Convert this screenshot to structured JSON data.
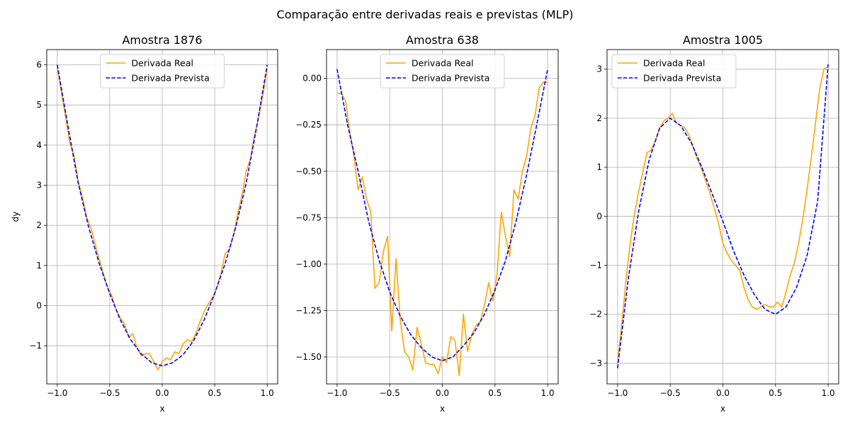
{
  "suptitle": "Comparação entre derivadas reais e previstas (MLP)",
  "colors": {
    "real": "#ffa500",
    "pred": "#0000ff",
    "grid": "#b0b0b0"
  },
  "chart_data": [
    {
      "type": "line",
      "title": "Amostra 1876",
      "xlabel": "x",
      "ylabel": "dy",
      "xlim": [
        -1.1,
        1.1
      ],
      "ylim": [
        -1.95,
        6.38
      ],
      "xticks": [
        -1.0,
        -0.5,
        0.0,
        0.5,
        1.0
      ],
      "xtick_labels": [
        "−1.0",
        "−0.5",
        "0.0",
        "0.5",
        "1.0"
      ],
      "yticks": [
        -1,
        0,
        1,
        2,
        3,
        4,
        5,
        6
      ],
      "ytick_labels": [
        "−1",
        "0",
        "1",
        "2",
        "3",
        "4",
        "5",
        "6"
      ],
      "grid": true,
      "legend_position": "top-center",
      "series": [
        {
          "name": "Derivada Real",
          "style": "solid",
          "x": [
            -1.0,
            -0.96,
            -0.92,
            -0.88,
            -0.84,
            -0.8,
            -0.76,
            -0.72,
            -0.68,
            -0.64,
            -0.6,
            -0.56,
            -0.52,
            -0.48,
            -0.44,
            -0.4,
            -0.36,
            -0.32,
            -0.28,
            -0.24,
            -0.2,
            -0.16,
            -0.12,
            -0.08,
            -0.04,
            0.0,
            0.04,
            0.08,
            0.12,
            0.16,
            0.2,
            0.24,
            0.28,
            0.32,
            0.36,
            0.4,
            0.44,
            0.48,
            0.52,
            0.56,
            0.6,
            0.64,
            0.68,
            0.72,
            0.76,
            0.8,
            0.84,
            0.88,
            0.92,
            0.96,
            1.0
          ],
          "y": [
            5.95,
            5.3,
            4.7,
            4.05,
            3.75,
            3.1,
            2.7,
            2.2,
            1.95,
            1.55,
            1.15,
            0.8,
            0.45,
            0.25,
            -0.1,
            -0.3,
            -0.45,
            -0.8,
            -0.7,
            -1.05,
            -1.25,
            -1.2,
            -1.2,
            -1.4,
            -1.6,
            -1.4,
            -1.3,
            -1.35,
            -1.15,
            -1.2,
            -0.95,
            -0.85,
            -0.9,
            -0.7,
            -0.4,
            -0.15,
            0.05,
            0.2,
            0.45,
            0.8,
            1.3,
            1.4,
            1.75,
            2.3,
            2.75,
            3.35,
            3.65,
            4.25,
            4.7,
            5.25,
            5.9
          ]
        },
        {
          "name": "Derivada Prevista",
          "style": "dashed",
          "x": [
            -1.0,
            -0.9,
            -0.8,
            -0.7,
            -0.6,
            -0.5,
            -0.4,
            -0.3,
            -0.2,
            -0.1,
            0.0,
            0.1,
            0.2,
            0.3,
            0.4,
            0.5,
            0.6,
            0.7,
            0.8,
            0.9,
            1.0
          ],
          "y": [
            6.0,
            4.5,
            3.05,
            1.95,
            1.05,
            0.3,
            -0.35,
            -0.85,
            -1.2,
            -1.42,
            -1.5,
            -1.42,
            -1.22,
            -0.87,
            -0.35,
            0.3,
            1.05,
            1.95,
            3.05,
            4.45,
            6.0
          ]
        }
      ]
    },
    {
      "type": "line",
      "title": "Amostra 638",
      "xlabel": "x",
      "ylabel": "",
      "xlim": [
        -1.1,
        1.1
      ],
      "ylim": [
        -1.645,
        0.155
      ],
      "xticks": [
        -1.0,
        -0.5,
        0.0,
        0.5,
        1.0
      ],
      "xtick_labels": [
        "−1.0",
        "−0.5",
        "0.0",
        "0.5",
        "1.0"
      ],
      "yticks": [
        -1.5,
        -1.25,
        -1.0,
        -0.75,
        -0.5,
        -0.25,
        0.0
      ],
      "ytick_labels": [
        "−1.50",
        "−1.25",
        "−1.00",
        "−0.75",
        "−0.50",
        "−0.25",
        "0.00"
      ],
      "grid": true,
      "legend_position": "top-center",
      "series": [
        {
          "name": "Derivada Real",
          "style": "solid",
          "x": [
            -1.0,
            -0.96,
            -0.92,
            -0.88,
            -0.84,
            -0.8,
            -0.76,
            -0.72,
            -0.68,
            -0.64,
            -0.6,
            -0.56,
            -0.52,
            -0.48,
            -0.44,
            -0.4,
            -0.36,
            -0.32,
            -0.28,
            -0.24,
            -0.2,
            -0.16,
            -0.12,
            -0.08,
            -0.04,
            0.0,
            0.04,
            0.08,
            0.12,
            0.16,
            0.2,
            0.24,
            0.28,
            0.32,
            0.36,
            0.4,
            0.44,
            0.48,
            0.52,
            0.56,
            0.6,
            0.64,
            0.68,
            0.72,
            0.76,
            0.8,
            0.84,
            0.88,
            0.92,
            0.96,
            1.0
          ],
          "y": [
            -0.08,
            -0.08,
            -0.12,
            -0.28,
            -0.42,
            -0.6,
            -0.53,
            -0.65,
            -0.72,
            -1.13,
            -1.1,
            -0.93,
            -0.85,
            -1.36,
            -0.97,
            -1.3,
            -1.47,
            -1.5,
            -1.57,
            -1.34,
            -1.43,
            -1.53,
            -1.54,
            -1.54,
            -1.59,
            -1.5,
            -1.53,
            -1.39,
            -1.41,
            -1.6,
            -1.27,
            -1.47,
            -1.38,
            -1.33,
            -1.31,
            -1.22,
            -1.1,
            -1.2,
            -1.05,
            -0.72,
            -0.85,
            -0.96,
            -0.6,
            -0.65,
            -0.5,
            -0.42,
            -0.27,
            -0.2,
            -0.05,
            -0.02,
            -0.02
          ]
        },
        {
          "name": "Derivada Prevista",
          "style": "dashed",
          "x": [
            -1.0,
            -0.9,
            -0.8,
            -0.7,
            -0.6,
            -0.5,
            -0.4,
            -0.3,
            -0.2,
            -0.1,
            0.0,
            0.1,
            0.2,
            0.3,
            0.4,
            0.5,
            0.6,
            0.7,
            0.8,
            0.9,
            1.0
          ],
          "y": [
            0.05,
            -0.25,
            -0.5,
            -0.77,
            -0.98,
            -1.15,
            -1.28,
            -1.38,
            -1.45,
            -1.5,
            -1.52,
            -1.5,
            -1.44,
            -1.37,
            -1.27,
            -1.14,
            -0.98,
            -0.77,
            -0.52,
            -0.24,
            0.05
          ]
        }
      ]
    },
    {
      "type": "line",
      "title": "Amostra 1005",
      "xlabel": "x",
      "ylabel": "",
      "xlim": [
        -1.1,
        1.1
      ],
      "ylim": [
        -3.42,
        3.4
      ],
      "xticks": [
        -1.0,
        -0.5,
        0.0,
        0.5,
        1.0
      ],
      "xtick_labels": [
        "−1.0",
        "−0.5",
        "0.0",
        "0.5",
        "1.0"
      ],
      "yticks": [
        -3,
        -2,
        -1,
        0,
        1,
        2,
        3
      ],
      "ytick_labels": [
        "−3",
        "−2",
        "−1",
        "0",
        "1",
        "2",
        "3"
      ],
      "grid": true,
      "legend_position": "top-left",
      "series": [
        {
          "name": "Derivada Real",
          "style": "solid",
          "x": [
            -1.0,
            -0.96,
            -0.92,
            -0.88,
            -0.84,
            -0.8,
            -0.76,
            -0.72,
            -0.68,
            -0.64,
            -0.6,
            -0.56,
            -0.52,
            -0.48,
            -0.44,
            -0.4,
            -0.36,
            -0.32,
            -0.28,
            -0.24,
            -0.2,
            -0.16,
            -0.12,
            -0.08,
            -0.04,
            0.0,
            0.04,
            0.08,
            0.12,
            0.16,
            0.2,
            0.24,
            0.28,
            0.32,
            0.36,
            0.4,
            0.44,
            0.48,
            0.52,
            0.56,
            0.6,
            0.64,
            0.68,
            0.72,
            0.76,
            0.8,
            0.84,
            0.88,
            0.92,
            0.96,
            1.0
          ],
          "y": [
            -3.0,
            -2.2,
            -1.3,
            -0.55,
            0.05,
            0.5,
            0.9,
            1.3,
            1.35,
            1.55,
            1.8,
            1.95,
            2.0,
            2.1,
            1.9,
            1.85,
            1.8,
            1.65,
            1.4,
            1.15,
            0.95,
            0.7,
            0.45,
            0.15,
            -0.15,
            -0.55,
            -0.75,
            -0.9,
            -1.0,
            -1.1,
            -1.45,
            -1.7,
            -1.85,
            -1.9,
            -1.85,
            -1.8,
            -1.85,
            -1.85,
            -1.75,
            -1.85,
            -1.55,
            -1.2,
            -0.95,
            -0.55,
            -0.05,
            0.55,
            1.2,
            1.9,
            2.6,
            3.0,
            3.05
          ]
        },
        {
          "name": "Derivada Prevista",
          "style": "dashed",
          "x": [
            -1.0,
            -0.9,
            -0.8,
            -0.7,
            -0.6,
            -0.5,
            -0.4,
            -0.3,
            -0.2,
            -0.1,
            0.0,
            0.1,
            0.2,
            0.3,
            0.4,
            0.5,
            0.6,
            0.7,
            0.8,
            0.9,
            1.0
          ],
          "y": [
            -3.1,
            -1.3,
            0.1,
            1.15,
            1.8,
            2.0,
            1.85,
            1.5,
            1.0,
            0.45,
            -0.1,
            -0.7,
            -1.2,
            -1.6,
            -1.9,
            -2.0,
            -1.85,
            -1.45,
            -0.8,
            0.3,
            3.1
          ]
        }
      ]
    }
  ]
}
